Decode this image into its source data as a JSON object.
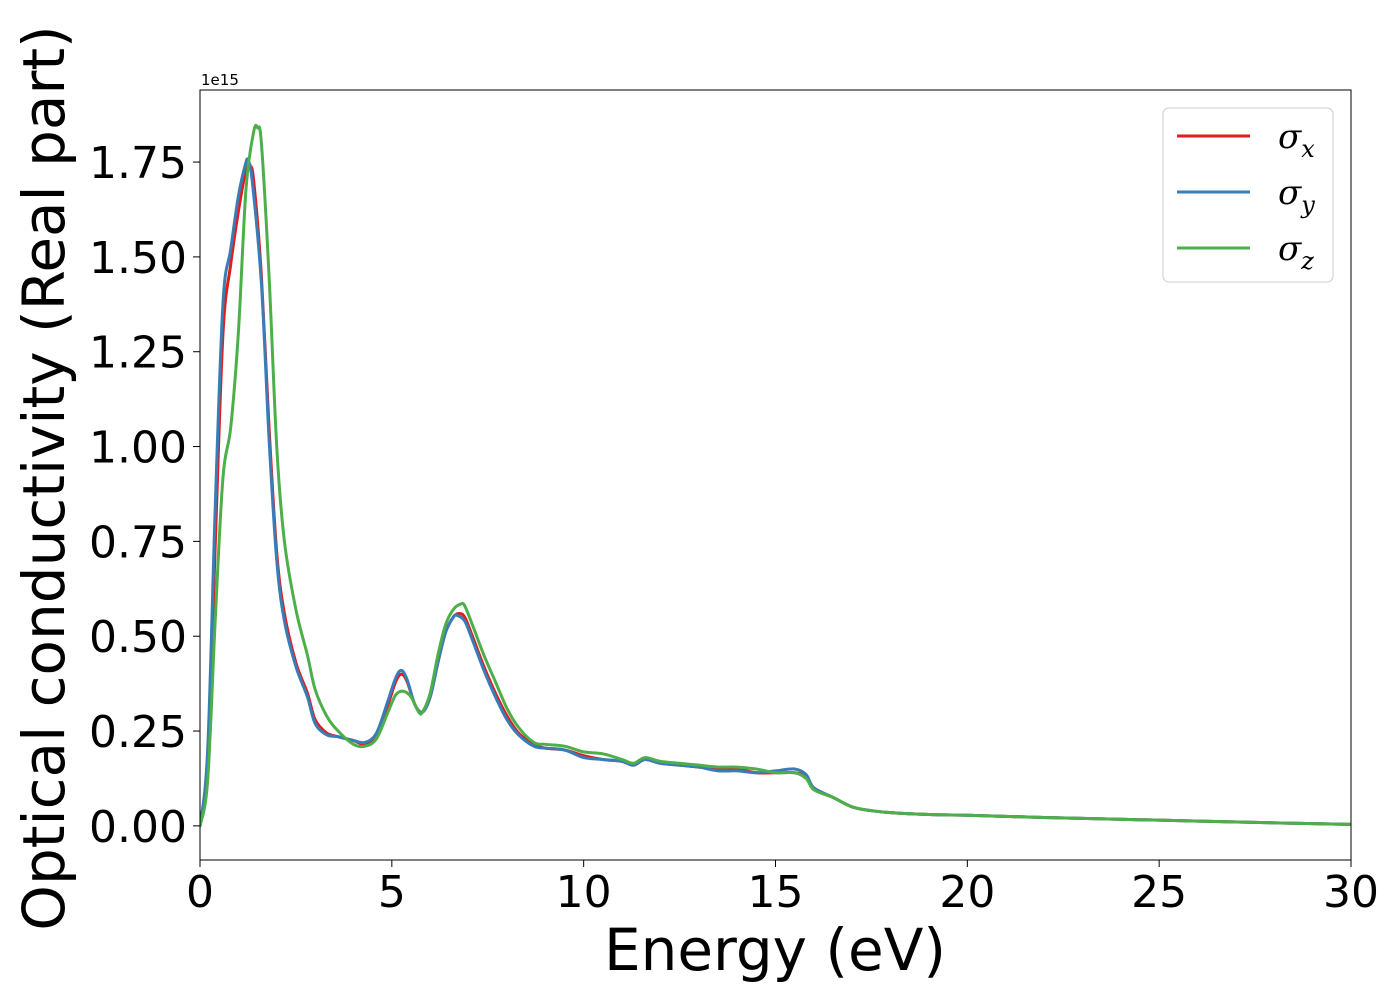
{
  "chart_data": {
    "type": "line",
    "xlabel": "Energy (eV)",
    "ylabel": "Optical conductivity (Real part)",
    "y_offset_text": "1e15",
    "xlim": [
      0,
      30
    ],
    "ylim": [
      -0.09,
      1.94
    ],
    "y_scale_factor": 1000000000000000.0,
    "x_ticks": [
      0,
      5,
      10,
      15,
      20,
      25,
      30
    ],
    "x_tick_labels": [
      "0",
      "5",
      "10",
      "15",
      "20",
      "25",
      "30"
    ],
    "y_ticks": [
      0.0,
      0.25,
      0.5,
      0.75,
      1.0,
      1.25,
      1.5,
      1.75
    ],
    "y_tick_labels": [
      "0.00",
      "0.25",
      "0.50",
      "0.75",
      "1.00",
      "1.25",
      "1.50",
      "1.75"
    ],
    "grid": false,
    "legend_position": "top-right",
    "series": [
      {
        "name": "σ_x",
        "label_main": "σ",
        "label_sub": "x",
        "color": "#e41a1c",
        "x": [
          0,
          0.2,
          0.4,
          0.6,
          0.8,
          1.0,
          1.2,
          1.3,
          1.4,
          1.6,
          1.8,
          2.0,
          2.2,
          2.5,
          2.8,
          3.0,
          3.3,
          3.6,
          4.0,
          4.3,
          4.6,
          4.9,
          5.1,
          5.25,
          5.4,
          5.6,
          5.8,
          6.0,
          6.2,
          6.4,
          6.6,
          6.75,
          6.9,
          7.1,
          7.4,
          7.7,
          8.0,
          8.3,
          8.7,
          9.0,
          9.5,
          10.0,
          10.5,
          11.0,
          11.3,
          11.6,
          12.0,
          12.5,
          13.0,
          13.5,
          14.0,
          14.5,
          15.0,
          15.5,
          15.8,
          16.0,
          16.5,
          17.0,
          17.5,
          18.0,
          19.0,
          20.0,
          22.0,
          25.0,
          28.0,
          30.0
        ],
        "y": [
          0.0,
          0.15,
          0.75,
          1.3,
          1.48,
          1.62,
          1.73,
          1.74,
          1.7,
          1.45,
          1.05,
          0.72,
          0.56,
          0.43,
          0.35,
          0.28,
          0.245,
          0.235,
          0.225,
          0.215,
          0.24,
          0.32,
          0.38,
          0.4,
          0.38,
          0.32,
          0.3,
          0.34,
          0.43,
          0.51,
          0.55,
          0.56,
          0.55,
          0.5,
          0.42,
          0.35,
          0.29,
          0.245,
          0.215,
          0.205,
          0.2,
          0.185,
          0.175,
          0.17,
          0.16,
          0.175,
          0.165,
          0.16,
          0.155,
          0.15,
          0.15,
          0.14,
          0.14,
          0.14,
          0.13,
          0.1,
          0.075,
          0.05,
          0.04,
          0.035,
          0.03,
          0.028,
          0.022,
          0.015,
          0.008,
          0.004
        ]
      },
      {
        "name": "σ_y",
        "label_main": "σ",
        "label_sub": "y",
        "color": "#377eb8",
        "x": [
          0,
          0.2,
          0.4,
          0.6,
          0.8,
          1.0,
          1.2,
          1.25,
          1.35,
          1.6,
          1.8,
          2.0,
          2.2,
          2.5,
          2.8,
          3.0,
          3.3,
          3.6,
          4.0,
          4.3,
          4.6,
          4.9,
          5.1,
          5.25,
          5.4,
          5.6,
          5.8,
          6.0,
          6.2,
          6.4,
          6.6,
          6.7,
          6.9,
          7.1,
          7.4,
          7.7,
          8.0,
          8.3,
          8.7,
          9.0,
          9.5,
          10.0,
          10.5,
          11.0,
          11.3,
          11.6,
          12.0,
          12.5,
          13.0,
          13.5,
          14.0,
          14.5,
          15.0,
          15.5,
          15.8,
          16.0,
          16.5,
          17.0,
          17.5,
          18.0,
          19.0,
          20.0,
          22.0,
          25.0,
          28.0,
          30.0
        ],
        "y": [
          0.0,
          0.2,
          0.85,
          1.38,
          1.52,
          1.66,
          1.75,
          1.75,
          1.71,
          1.43,
          1.02,
          0.7,
          0.54,
          0.42,
          0.34,
          0.27,
          0.24,
          0.235,
          0.225,
          0.22,
          0.245,
          0.33,
          0.39,
          0.41,
          0.385,
          0.32,
          0.3,
          0.34,
          0.43,
          0.51,
          0.55,
          0.555,
          0.54,
          0.49,
          0.41,
          0.34,
          0.28,
          0.24,
          0.21,
          0.205,
          0.2,
          0.18,
          0.175,
          0.17,
          0.16,
          0.175,
          0.165,
          0.16,
          0.155,
          0.145,
          0.145,
          0.14,
          0.145,
          0.15,
          0.135,
          0.1,
          0.075,
          0.05,
          0.04,
          0.035,
          0.03,
          0.028,
          0.022,
          0.015,
          0.008,
          0.004
        ]
      },
      {
        "name": "σ_z",
        "label_main": "σ",
        "label_sub": "z",
        "color": "#4daf4a",
        "x": [
          0,
          0.2,
          0.4,
          0.6,
          0.8,
          1.0,
          1.2,
          1.4,
          1.5,
          1.6,
          1.8,
          2.0,
          2.2,
          2.5,
          2.8,
          3.0,
          3.3,
          3.6,
          4.0,
          4.3,
          4.6,
          4.9,
          5.1,
          5.3,
          5.5,
          5.7,
          5.8,
          6.0,
          6.2,
          6.4,
          6.6,
          6.8,
          6.9,
          7.1,
          7.4,
          7.7,
          8.0,
          8.3,
          8.7,
          9.0,
          9.5,
          10.0,
          10.5,
          11.0,
          11.3,
          11.6,
          12.0,
          12.5,
          13.0,
          13.5,
          14.0,
          14.5,
          15.0,
          15.5,
          15.8,
          16.0,
          16.5,
          17.0,
          17.5,
          18.0,
          19.0,
          20.0,
          22.0,
          25.0,
          28.0,
          30.0
        ],
        "y": [
          0.0,
          0.12,
          0.55,
          0.92,
          1.05,
          1.3,
          1.68,
          1.83,
          1.84,
          1.8,
          1.45,
          1.0,
          0.75,
          0.57,
          0.45,
          0.36,
          0.29,
          0.25,
          0.215,
          0.21,
          0.23,
          0.3,
          0.345,
          0.355,
          0.34,
          0.3,
          0.3,
          0.35,
          0.45,
          0.53,
          0.57,
          0.585,
          0.58,
          0.53,
          0.45,
          0.38,
          0.31,
          0.26,
          0.22,
          0.215,
          0.21,
          0.195,
          0.19,
          0.175,
          0.165,
          0.18,
          0.17,
          0.165,
          0.16,
          0.155,
          0.155,
          0.15,
          0.14,
          0.14,
          0.125,
          0.095,
          0.075,
          0.05,
          0.04,
          0.035,
          0.03,
          0.028,
          0.022,
          0.015,
          0.008,
          0.004
        ]
      }
    ]
  }
}
